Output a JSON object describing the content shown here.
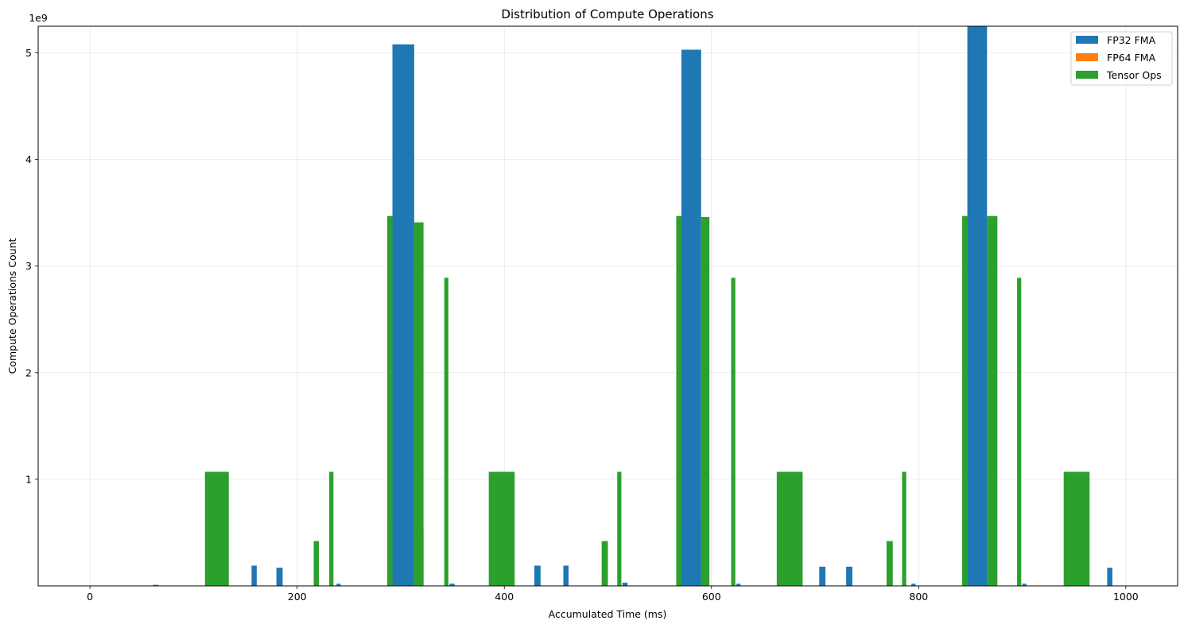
{
  "chart_data": {
    "type": "bar",
    "title": "Distribution of Compute Operations",
    "xlabel": "Accumulated Time (ms)",
    "ylabel": "Compute Operations Count",
    "y_scale_label": "1e9",
    "xlim": [
      -50,
      1050
    ],
    "ylim": [
      0,
      5.25
    ],
    "x_ticks": [
      0,
      200,
      400,
      600,
      800,
      1000
    ],
    "x_tick_labels": [
      "0",
      "200",
      "400",
      "600",
      "800",
      "1000"
    ],
    "y_ticks": [
      1,
      2,
      3,
      4,
      5
    ],
    "y_tick_labels": [
      "1",
      "2",
      "3",
      "4",
      "5"
    ],
    "grid": true,
    "legend_position": "top-right",
    "series": [
      {
        "name": "FP32 FMA",
        "color": "#1f77b4",
        "bars": [
          {
            "x0": 61,
            "x1": 66,
            "value": 0.01
          },
          {
            "x0": 156,
            "x1": 161,
            "value": 0.19
          },
          {
            "x0": 180,
            "x1": 186,
            "value": 0.17
          },
          {
            "x0": 238,
            "x1": 242,
            "value": 0.02
          },
          {
            "x0": 287,
            "x1": 292,
            "value": 0.6
          },
          {
            "x0": 292,
            "x1": 313,
            "value": 5.08
          },
          {
            "x0": 313,
            "x1": 322,
            "value": 0.53
          },
          {
            "x0": 347,
            "x1": 352,
            "value": 0.02
          },
          {
            "x0": 429,
            "x1": 435,
            "value": 0.19
          },
          {
            "x0": 457,
            "x1": 462,
            "value": 0.19
          },
          {
            "x0": 514,
            "x1": 519,
            "value": 0.03
          },
          {
            "x0": 566,
            "x1": 571,
            "value": 0.6
          },
          {
            "x0": 571,
            "x1": 590,
            "value": 5.03
          },
          {
            "x0": 590,
            "x1": 596,
            "value": 0.59
          },
          {
            "x0": 624,
            "x1": 628,
            "value": 0.02
          },
          {
            "x0": 704,
            "x1": 710,
            "value": 0.18
          },
          {
            "x0": 730,
            "x1": 736,
            "value": 0.18
          },
          {
            "x0": 793,
            "x1": 797,
            "value": 0.02
          },
          {
            "x0": 842,
            "x1": 847,
            "value": 0.6
          },
          {
            "x0": 847,
            "x1": 866,
            "value": 5.25
          },
          {
            "x0": 866,
            "x1": 874,
            "value": 0.59
          },
          {
            "x0": 900,
            "x1": 904,
            "value": 0.02
          },
          {
            "x0": 982,
            "x1": 987,
            "value": 0.17
          }
        ]
      },
      {
        "name": "FP64 FMA",
        "color": "#ff7f0e",
        "bars": []
      },
      {
        "name": "Tensor Ops",
        "color": "#2ca02c",
        "bars": [
          {
            "x0": 111,
            "x1": 134,
            "value": 1.07
          },
          {
            "x0": 216,
            "x1": 221,
            "value": 0.42
          },
          {
            "x0": 231,
            "x1": 235,
            "value": 1.07
          },
          {
            "x0": 287,
            "x1": 292,
            "value": 3.47
          },
          {
            "x0": 313,
            "x1": 322,
            "value": 3.41
          },
          {
            "x0": 342,
            "x1": 346,
            "value": 2.89
          },
          {
            "x0": 385,
            "x1": 410,
            "value": 1.07
          },
          {
            "x0": 494,
            "x1": 500,
            "value": 0.42
          },
          {
            "x0": 509,
            "x1": 513,
            "value": 1.07
          },
          {
            "x0": 566,
            "x1": 571,
            "value": 3.47
          },
          {
            "x0": 590,
            "x1": 598,
            "value": 3.46
          },
          {
            "x0": 619,
            "x1": 623,
            "value": 2.89
          },
          {
            "x0": 663,
            "x1": 688,
            "value": 1.07
          },
          {
            "x0": 769,
            "x1": 775,
            "value": 0.42
          },
          {
            "x0": 784,
            "x1": 788,
            "value": 1.07
          },
          {
            "x0": 842,
            "x1": 847,
            "value": 3.47
          },
          {
            "x0": 866,
            "x1": 876,
            "value": 3.47
          },
          {
            "x0": 895,
            "x1": 899,
            "value": 2.89
          },
          {
            "x0": 940,
            "x1": 965,
            "value": 1.07
          }
        ]
      }
    ]
  }
}
